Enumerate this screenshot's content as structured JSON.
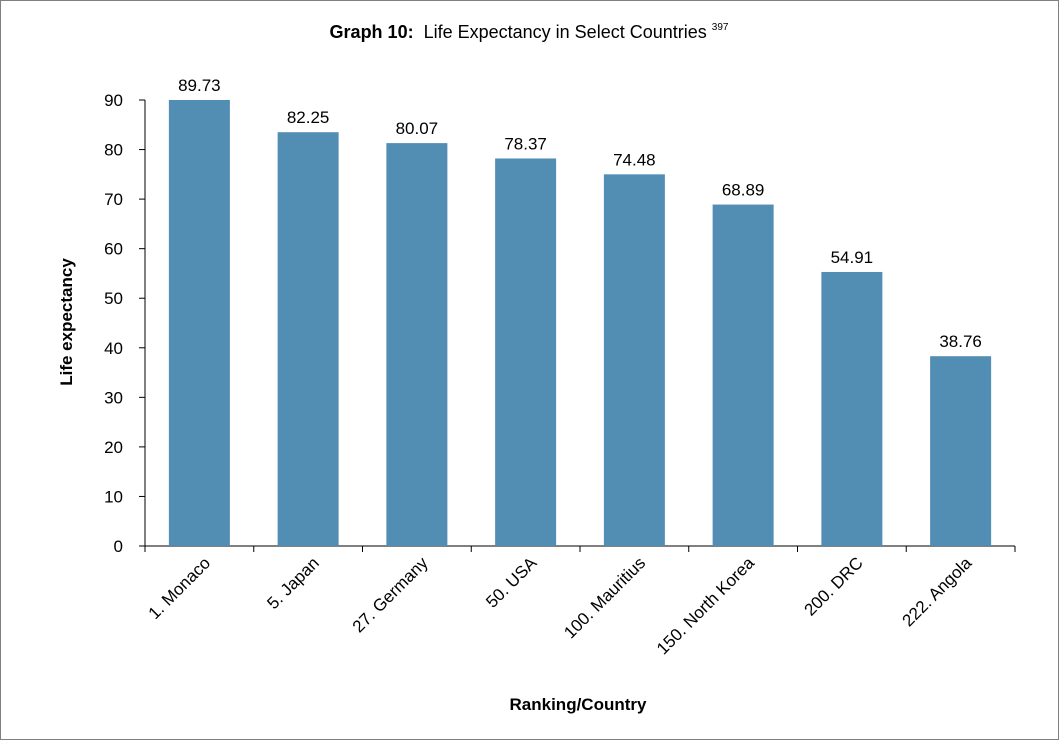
{
  "chart_data": {
    "type": "bar",
    "title_bold": "Graph 10:",
    "title_rest": "Life Expectancy in Select Countries",
    "title_superscript": "397",
    "xlabel": "Ranking/Country",
    "ylabel": "Life expectancy",
    "categories": [
      "1. Monaco",
      "5. Japan",
      "27. Germany",
      "50. USA",
      "100. Mauritius",
      "150. North Korea",
      "200. DRC",
      "222. Angola"
    ],
    "values": [
      89.73,
      82.25,
      80.07,
      78.37,
      74.48,
      68.89,
      54.91,
      38.76
    ],
    "data_labels": [
      "89.73",
      "82.25",
      "80.07",
      "78.37",
      "74.48",
      "68.89",
      "54.91",
      "38.76"
    ],
    "bar_heights": [
      90,
      83.5,
      81.3,
      78.2,
      75,
      68.9,
      55.3,
      38.3
    ],
    "ylim": [
      0,
      90
    ],
    "yticks": [
      0,
      10,
      20,
      30,
      40,
      50,
      60,
      70,
      80,
      90
    ],
    "grid": false,
    "legend": "none",
    "colors": {
      "bar": "#528db4",
      "axis": "#000000",
      "frame": "#7f7f7f"
    }
  }
}
